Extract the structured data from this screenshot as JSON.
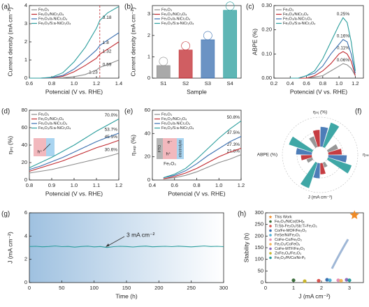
{
  "chart_data": [
    {
      "type": "line",
      "panel_label": "(a)",
      "x_label": "Potencial (V vs. RHE)",
      "y_label": "Current density (mA cm⁻²)",
      "x": [
        0.6,
        0.7,
        0.8,
        0.9,
        1.0,
        1.1,
        1.2,
        1.23,
        1.3,
        1.4
      ],
      "vline": 1.23,
      "xlim": [
        0.6,
        1.4
      ],
      "xticks": [
        0.6,
        0.8,
        {
          "value": 1,
          "label": "1.0"
        },
        1.2,
        1.4
      ],
      "ylim": [
        0,
        4
      ],
      "yticks": [
        0,
        1,
        2,
        3,
        4
      ],
      "series": [
        {
          "name": "Fe₂O₃",
          "color": "#8c8c8c",
          "values": [
            0,
            0,
            0,
            0.02,
            0.08,
            0.2,
            0.45,
            0.59,
            0.75,
            1.0
          ]
        },
        {
          "name": "Fe₂O₃/NiCr₂O₄",
          "color": "#c0282e",
          "values": [
            0,
            0,
            0.02,
            0.1,
            0.35,
            0.7,
            1.1,
            1.32,
            1.6,
            2.0
          ]
        },
        {
          "name": "Fe₂O₃/a-NiCr₂O₄",
          "color": "#3a6fb0",
          "values": [
            0,
            0,
            0.03,
            0.15,
            0.5,
            1.0,
            1.55,
            1.8,
            2.1,
            2.5
          ]
        },
        {
          "name": "Fe₂O₃/S:a-NiCr₂O₄",
          "color": "#2a9d9c",
          "values": [
            0,
            0,
            0.05,
            0.3,
            0.9,
            1.7,
            2.75,
            3.18,
            3.6,
            3.95
          ]
        }
      ]
    },
    {
      "type": "bar",
      "panel_label": "(b)",
      "x_label": "Sample",
      "y_label": "Current density (mA cm⁻²)",
      "categories": [
        "S1",
        "S2",
        "S3",
        "S4"
      ],
      "values": [
        0.59,
        1.32,
        1.8,
        3.18
      ],
      "colors": [
        "#8c8c8c",
        "#c0282e",
        "#3a6fb0",
        "#2a9d9c"
      ],
      "legend": [
        "Fe₂O₃",
        "Fe₂O₃/NiCr₂O₄",
        "Fe₂O₃/a-NiCr₂O₄",
        "Fe₂O₃/S:a-NiCr₂O₄"
      ],
      "ylim": [
        0,
        3.4
      ],
      "yticks": [
        0,
        1,
        2,
        3
      ]
    },
    {
      "type": "line",
      "panel_label": "(c)",
      "x_label": "Potencial (V vs. RHE)",
      "y_label": "ABPE (%)",
      "x": [
        0.4,
        0.5,
        0.6,
        0.7,
        0.8,
        0.9,
        1.0,
        1.05,
        1.1,
        1.15,
        1.2
      ],
      "xlim": [
        0.2,
        1.3
      ],
      "xticks": [
        0.2,
        0.4,
        0.6,
        0.8,
        {
          "value": 1,
          "label": "1.0"
        },
        1.2
      ],
      "ylim": [
        0,
        0.3
      ],
      "yticks": [
        {
          "value": 0,
          "label": "0.00"
        },
        {
          "value": 0.1,
          "label": "0.10"
        },
        {
          "value": 0.2,
          "label": "0.20"
        },
        {
          "value": 0.3,
          "label": "0.30"
        }
      ],
      "series": [
        {
          "name": "Fe₂O₃",
          "color": "#8c8c8c",
          "values": [
            0,
            0,
            0,
            0.005,
            0.01,
            0.03,
            0.05,
            0.06,
            0.055,
            0.04,
            0.01
          ],
          "value_labels": [
            null,
            null,
            null,
            null,
            null,
            null,
            null,
            "0.06%",
            null,
            null,
            null
          ]
        },
        {
          "name": "Fe₂O₃/NiCr₂O₄",
          "color": "#c0282e",
          "values": [
            0,
            0,
            0,
            0.01,
            0.03,
            0.06,
            0.1,
            0.11,
            0.1,
            0.07,
            0.01
          ],
          "value_labels": [
            null,
            null,
            null,
            null,
            null,
            null,
            null,
            "0.11%",
            null,
            null,
            null
          ]
        },
        {
          "name": "Fe₂O₃/a-NiCr₂O₄",
          "color": "#3a6fb0",
          "values": [
            0,
            0,
            0.01,
            0.02,
            0.05,
            0.1,
            0.14,
            0.16,
            0.15,
            0.1,
            0.02
          ],
          "value_labels": [
            null,
            null,
            null,
            null,
            null,
            null,
            null,
            "0.16%",
            null,
            null,
            null
          ]
        },
        {
          "name": "Fe₂O₃/S:a-NiCr₂O₄",
          "color": "#2a9d9c",
          "values": [
            0,
            0,
            0.01,
            0.03,
            0.08,
            0.15,
            0.22,
            0.25,
            0.23,
            0.15,
            0.03
          ],
          "value_labels": [
            null,
            null,
            null,
            null,
            null,
            null,
            null,
            "0.25%",
            null,
            null,
            null
          ]
        }
      ]
    },
    {
      "type": "line",
      "panel_label": "(d)",
      "x_label": "Potencial (V vs. RHE)",
      "y_label": "ηᵢₙⱼ (%)",
      "x": [
        0.8,
        0.85,
        0.9,
        0.95,
        1.0,
        1.05,
        1.1,
        1.15,
        1.2
      ],
      "inset_labels": [
        "h⁺"
      ],
      "xlim": [
        0.8,
        1.2
      ],
      "xticks": [
        0.8,
        0.9,
        {
          "value": 1,
          "label": "1.0"
        },
        1.1,
        1.2
      ],
      "ylim": [
        0,
        80
      ],
      "yticks": [
        0,
        20,
        40,
        60,
        80
      ],
      "series": [
        {
          "name": "Fe₂O₃",
          "color": "#8c8c8c",
          "values": [
            8,
            10,
            12,
            15,
            18,
            21,
            24,
            27,
            30.6
          ],
          "value_labels": [
            null,
            null,
            null,
            null,
            null,
            null,
            null,
            null,
            "30.6%"
          ]
        },
        {
          "name": "Fe₂O₃/NiCr₂O₄",
          "color": "#c0282e",
          "values": [
            10,
            14,
            18,
            22,
            27,
            32,
            37,
            41,
            45.5
          ],
          "value_labels": [
            null,
            null,
            null,
            null,
            null,
            null,
            null,
            null,
            "45.5%"
          ]
        },
        {
          "name": "Fe₂O₃/a-NiCr₂O₄",
          "color": "#3a6fb0",
          "values": [
            12,
            16,
            21,
            26,
            32,
            38,
            44,
            49,
            53.7
          ],
          "value_labels": [
            null,
            null,
            null,
            null,
            null,
            null,
            null,
            null,
            "53.7%"
          ]
        },
        {
          "name": "Fe₂O₃/S:a-NiCr₂O₄",
          "color": "#2a9d9c",
          "values": [
            14,
            20,
            26,
            33,
            40,
            48,
            56,
            63,
            70.0
          ],
          "value_labels": [
            null,
            null,
            null,
            null,
            null,
            null,
            null,
            null,
            "70.0%"
          ]
        }
      ]
    },
    {
      "type": "line",
      "panel_label": "(e)",
      "x_label": "Potencial (V vs. RHE)",
      "y_label": "ηₛₑₚ (%)",
      "x": [
        0.5,
        0.6,
        0.7,
        0.8,
        0.9,
        1.0,
        1.1,
        1.2
      ],
      "inset_labels": [
        "e⁻",
        "h⁺",
        "FTO",
        "Fe₂O₃",
        "electrolyte"
      ],
      "xlim": [
        0.4,
        1.2
      ],
      "xticks": [
        0.4,
        0.6,
        0.8,
        {
          "value": 1,
          "label": "1.0"
        },
        1.2
      ],
      "ylim": [
        0,
        60
      ],
      "yticks": [
        0,
        20,
        40,
        60
      ],
      "series": [
        {
          "name": "Fe₂O₃",
          "color": "#8c8c8c",
          "values": [
            1,
            2,
            4,
            7,
            11,
            15,
            18,
            21.8
          ],
          "value_labels": [
            null,
            null,
            null,
            null,
            null,
            null,
            null,
            "21.8%"
          ]
        },
        {
          "name": "Fe₂O₃/NiCr₂O₄",
          "color": "#c0282e",
          "values": [
            1,
            3,
            6,
            10,
            15,
            20,
            24,
            27.3
          ],
          "value_labels": [
            null,
            null,
            null,
            null,
            null,
            null,
            null,
            "27.3%"
          ]
        },
        {
          "name": "Fe₂O₃/a-NiCr₂O₄",
          "color": "#3a6fb0",
          "values": [
            2,
            4,
            8,
            14,
            21,
            27,
            33,
            37.5
          ],
          "value_labels": [
            null,
            null,
            null,
            null,
            null,
            null,
            null,
            "37.5%"
          ]
        },
        {
          "name": "Fe₂O₃/S:a-NiCr₂O₄",
          "color": "#2a9d9c",
          "values": [
            2,
            5,
            10,
            18,
            27,
            36,
            44,
            50.8
          ],
          "value_labels": [
            null,
            null,
            null,
            null,
            null,
            null,
            null,
            "50.8%"
          ]
        }
      ]
    },
    {
      "type": "radar",
      "panel_label": "(f)",
      "axes": [
        {
          "label": "ηᵢₙⱼ (%)",
          "lim": [
            0,
            80
          ]
        },
        {
          "label": "ηₛₑₚ (%)",
          "lim": [
            0,
            60
          ]
        },
        {
          "label": "J (mA cm⁻²)",
          "lim": [
            0,
            3.5
          ]
        },
        {
          "label": "ABPE (%)",
          "lim": [
            0,
            0.3
          ]
        }
      ],
      "series": [
        {
          "color": "#8c8c8c",
          "values": [
            30.6,
            21.8,
            0.59,
            0.06
          ]
        },
        {
          "color": "#c0282e",
          "values": [
            45.5,
            27.3,
            1.32,
            0.11
          ]
        },
        {
          "color": "#3a6fb0",
          "values": [
            53.7,
            37.5,
            1.8,
            0.16
          ]
        },
        {
          "color": "#2a9d9c",
          "values": [
            70.0,
            50.8,
            3.18,
            0.25
          ]
        }
      ]
    },
    {
      "type": "line",
      "panel_label": "(g)",
      "x_label": "Time (h)",
      "y_label": "J (mA cm⁻²)",
      "annotation": "3 mA cm⁻²",
      "x": [
        0,
        10,
        20,
        30,
        40,
        50,
        60,
        70,
        80,
        90,
        100,
        110,
        120,
        130,
        140,
        150,
        160,
        170,
        180,
        190,
        200,
        210,
        220,
        230,
        240,
        250,
        260,
        270,
        280,
        290,
        300
      ],
      "xlim": [
        0,
        300
      ],
      "xticks": [
        0,
        50,
        100,
        150,
        200,
        250,
        300
      ],
      "ylim": [
        0,
        6
      ],
      "yticks": [
        0,
        2,
        4,
        6
      ],
      "series": [
        {
          "color": "#2a9d9c",
          "values": [
            3.1,
            3.12,
            3.08,
            3.1,
            3.15,
            3.09,
            3.11,
            3.05,
            3.1,
            3.13,
            3.07,
            3.1,
            3.02,
            3.09,
            3.12,
            3.1,
            3.06,
            3.11,
            3.14,
            3.08,
            3.1,
            3.12,
            3.09,
            3.13,
            3.1,
            3.07,
            3.11,
            3.15,
            3.1,
            3.12,
            3.09
          ]
        }
      ]
    },
    {
      "type": "scatter",
      "panel_label": "(h)",
      "x_label": "J (mA cm⁻²)",
      "y_label": "Stability (h)",
      "xlim": [
        0,
        3.5
      ],
      "xticks": [
        0,
        1,
        2,
        3
      ],
      "ylim": [
        0,
        300
      ],
      "yticks": [
        0,
        50,
        100,
        150,
        200,
        250,
        300
      ],
      "series": [
        {
          "name": "This Work",
          "color": "#f08a24",
          "marker": "star",
          "x": [
            3.18
          ],
          "values": [
            290
          ]
        },
        {
          "name": "Fe₂O₃/NiCo(OH)ₓ",
          "color": "#3b6e3b",
          "marker": "circle",
          "x": [
            1.0
          ],
          "values": [
            10
          ]
        },
        {
          "name": "Ti:Sb-Fe₂O₃/Sb:Ti-Fe₂O₃",
          "color": "#d9534f",
          "marker": "circle",
          "x": [
            1.9
          ],
          "values": [
            8
          ]
        },
        {
          "name": "Co/Fe-MOF/Fe₂O₃",
          "color": "#3a6fb0",
          "marker": "circle",
          "x": [
            2.2
          ],
          "values": [
            12
          ]
        },
        {
          "name": "FeSe/Ni/Fe₂O₃",
          "color": "#4fb3d9",
          "marker": "circle",
          "x": [
            2.3
          ],
          "values": [
            10
          ]
        },
        {
          "name": "CoFe-Co/Fe₂O₃",
          "color": "#e58fb5",
          "marker": "circle",
          "x": [
            2.6
          ],
          "values": [
            10
          ]
        },
        {
          "name": "Fe₂O₃/CoFeOₓ",
          "color": "#f3b55a",
          "marker": "circle",
          "x": [
            2.7
          ],
          "values": [
            8
          ]
        },
        {
          "name": "CoFe-MTF/Fe₂O₃",
          "color": "#8e6bbf",
          "marker": "circle",
          "x": [
            2.9
          ],
          "values": [
            12
          ]
        },
        {
          "name": "ZnFe₂O₄/Fe₂O₃",
          "color": "#c9b52e",
          "marker": "circle",
          "x": [
            1.4
          ],
          "values": [
            6
          ]
        },
        {
          "name": "Fe₂O₃/Pi/Co/Ni-Pₓ",
          "color": "#2a9d9c",
          "marker": "circle",
          "x": [
            3.0
          ],
          "values": [
            10
          ]
        }
      ]
    }
  ]
}
